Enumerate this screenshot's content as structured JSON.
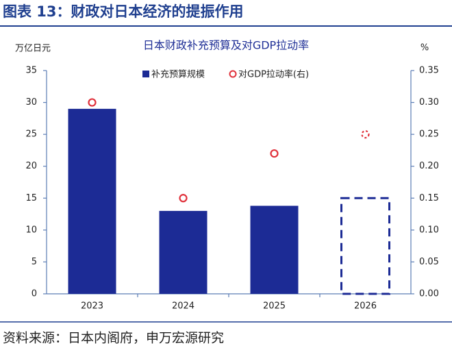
{
  "header": {
    "title": "图表 13：财政对日本经济的提振作用"
  },
  "source": "资料来源：日本内阁府，申万宏源研究",
  "chart_data": {
    "type": "bar_dot",
    "title": "日本财政补充预算及对GDP拉动率",
    "y_label": "万亿日元",
    "y2_label": "%",
    "categories": [
      "2023",
      "2024",
      "2025",
      "2026"
    ],
    "point_style": [
      "solid",
      "solid",
      "solid",
      "dashed"
    ],
    "series": [
      {
        "name": "补充预算规模",
        "color": "#1c2b95",
        "values": [
          29,
          13,
          13.8,
          15
        ]
      },
      {
        "name": "对GDP拉动率(右)",
        "color": "#e0303a",
        "values": [
          0.3,
          0.15,
          0.22,
          0.25
        ],
        "axis": "y2"
      }
    ],
    "ylim": [
      0,
      35
    ],
    "yticks": [
      0,
      5,
      10,
      15,
      20,
      25,
      30,
      35
    ],
    "y2lim": [
      0,
      0.35
    ],
    "y2ticks": [
      {
        "value": 0,
        "label": "0.00"
      },
      0.05,
      {
        "value": 0.1,
        "label": "0.10"
      },
      0.15,
      {
        "value": 0.2,
        "label": "0.20"
      },
      0.25,
      {
        "value": 0.3,
        "label": "0.30"
      },
      0.35
    ]
  }
}
